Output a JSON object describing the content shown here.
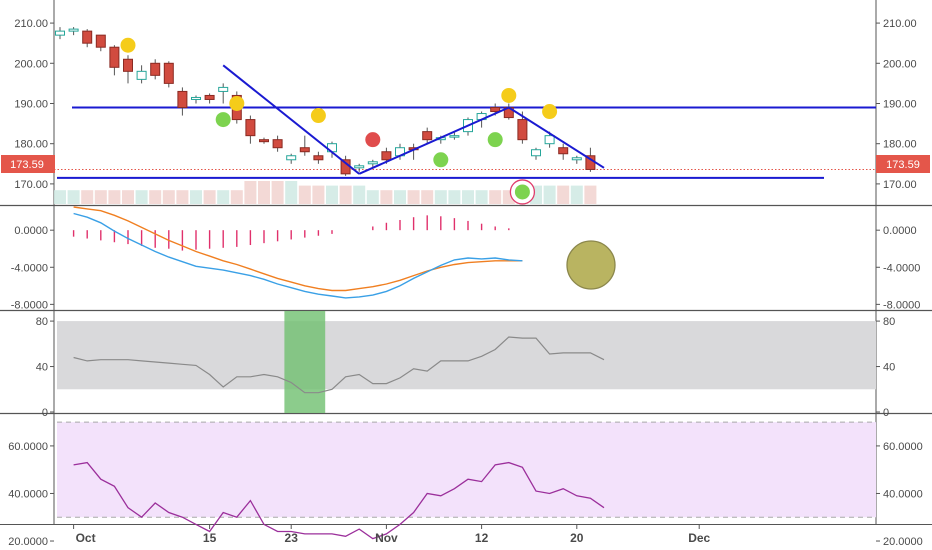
{
  "colors": {
    "up": "#26a69a",
    "down": "#d14b3f",
    "trendline": "#1a1ad1",
    "macd": "#3aa0e6",
    "signal": "#f07f21",
    "histogram": "#e0306b",
    "stoch": "#8a8a8a",
    "stoch_band": "#d9d9db",
    "highlight": "#6fbf6f",
    "rsi": "#9b2f9b",
    "rsi_band": "#f3e2fb",
    "price_label_bg": "#e4564a",
    "yellow_marker": "#f5cc1a",
    "green_marker": "#7dd34f",
    "red_marker": "#e04c4c",
    "olive_marker": "#a8a23a"
  },
  "price_label": "173.59",
  "chart_data": [
    {
      "type": "candlestick",
      "panel": "price",
      "ylim": [
        165,
        214
      ],
      "yticks": [
        "210.00",
        "200.00",
        "190.00",
        "180.00",
        "170.00"
      ],
      "ytick_values": [
        210,
        200,
        190,
        180,
        170
      ],
      "xticks": [
        {
          "label": "Oct",
          "i": 1
        },
        {
          "label": "15",
          "i": 11
        },
        {
          "label": "23",
          "i": 17
        },
        {
          "label": "Nov",
          "i": 24
        },
        {
          "label": "12",
          "i": 31
        },
        {
          "label": "20",
          "i": 38
        },
        {
          "label": "Dec",
          "i": 47
        }
      ],
      "ohlc": [
        [
          207,
          209,
          206,
          208
        ],
        [
          208,
          209,
          207,
          208.5
        ],
        [
          208,
          208.5,
          204,
          205
        ],
        [
          207,
          207,
          203,
          204
        ],
        [
          204,
          204.5,
          197,
          199
        ],
        [
          201,
          202,
          195,
          198
        ],
        [
          196,
          199.5,
          195,
          198
        ],
        [
          200,
          201,
          196,
          197
        ],
        [
          200,
          200.5,
          194,
          195
        ],
        [
          193,
          194,
          187,
          189
        ],
        [
          191,
          192,
          190,
          191.5
        ],
        [
          192,
          192.5,
          190,
          191
        ],
        [
          193,
          195,
          190,
          194
        ],
        [
          192,
          193,
          185,
          186
        ],
        [
          186,
          187,
          180,
          182
        ],
        [
          181,
          181.5,
          180,
          180.5
        ],
        [
          181,
          182,
          178,
          179
        ],
        [
          176,
          177.5,
          175,
          177
        ],
        [
          179,
          182,
          177,
          178
        ],
        [
          177,
          178,
          175,
          176
        ],
        [
          178,
          180.5,
          176.5,
          180
        ],
        [
          176,
          177,
          172,
          172.5
        ],
        [
          174,
          175,
          173,
          174.5
        ],
        [
          175,
          176,
          174,
          175.5
        ],
        [
          178,
          179,
          175,
          176
        ],
        [
          177,
          180,
          176,
          179
        ],
        [
          179,
          180,
          176,
          178.5
        ],
        [
          183,
          184,
          180,
          181
        ],
        [
          181,
          182,
          180,
          181.5
        ],
        [
          182,
          183,
          181,
          182
        ],
        [
          183,
          186.5,
          182,
          186
        ],
        [
          186,
          188,
          184,
          187.5
        ],
        [
          189,
          190,
          187,
          188
        ],
        [
          189,
          190,
          186,
          186.5
        ],
        [
          186,
          188,
          180,
          181
        ],
        [
          177,
          179,
          176,
          178.5
        ],
        [
          180,
          183,
          179,
          182
        ],
        [
          179,
          180,
          176,
          177.5
        ],
        [
          176,
          177,
          175,
          176.5
        ],
        [
          177,
          179,
          173,
          173.59
        ]
      ],
      "volume": [
        3,
        3,
        3,
        3,
        3,
        3,
        3,
        3,
        3,
        3,
        3,
        3,
        3,
        3,
        5,
        5,
        5,
        5,
        4,
        4,
        4,
        4,
        4,
        3,
        3,
        3,
        3,
        3,
        3,
        3,
        3,
        3,
        3,
        3,
        5,
        4,
        4,
        4,
        4,
        4
      ],
      "horizontal_lines": [
        189,
        171.5
      ],
      "trendlines": [
        [
          [
            12,
            199.5
          ],
          [
            22,
            172.5
          ]
        ],
        [
          [
            22,
            172.5
          ],
          [
            33,
            189
          ]
        ],
        [
          [
            33,
            189
          ],
          [
            40,
            174
          ]
        ]
      ]
    },
    {
      "type": "line",
      "panel": "macd",
      "ylim": [
        -8.5,
        2.5
      ],
      "yticks": [
        "0.0000",
        "-4.0000",
        "-8.0000"
      ],
      "ytick_values": [
        0,
        -4,
        -8
      ],
      "series": [
        {
          "values": [
            1.8,
            1.4,
            0.8,
            -0.1,
            -0.9,
            -1.6,
            -2.3,
            -2.9,
            -3.4,
            -3.9,
            -4.1,
            -4.3,
            -4.6,
            -4.9,
            -5.3,
            -5.8,
            -6.2,
            -6.6,
            -6.9,
            -7.1,
            -7.3,
            -7.2,
            -7.0,
            -6.6,
            -6.0,
            -5.2,
            -4.5,
            -3.8,
            -3.2,
            -3.0,
            -3.1,
            -3.0,
            -3.2,
            -3.3
          ],
          "x_start": 1
        },
        {
          "values": [
            2.5,
            2.3,
            2.1,
            1.6,
            1.0,
            0.3,
            -0.4,
            -1.1,
            -1.7,
            -2.3,
            -2.8,
            -3.3,
            -3.7,
            -4.2,
            -4.7,
            -5.2,
            -5.6,
            -6.0,
            -6.3,
            -6.5,
            -6.5,
            -6.3,
            -6.1,
            -5.8,
            -5.4,
            -4.9,
            -4.4,
            -4.0,
            -3.7,
            -3.5,
            -3.4,
            -3.3,
            -3.3,
            -3.3
          ],
          "x_start": 1
        }
      ],
      "histogram": [
        -0.7,
        -0.9,
        -1.1,
        -1.3,
        -1.5,
        -1.7,
        -1.9,
        -2.0,
        -2.2,
        -2.1,
        -2.0,
        -1.9,
        -1.8,
        -1.6,
        -1.4,
        -1.2,
        -1.0,
        -0.8,
        -0.6,
        -0.4,
        null,
        null,
        0.4,
        0.8,
        1.1,
        1.4,
        1.6,
        1.5,
        1.3,
        1.0,
        0.7,
        0.4,
        0.2
      ]
    },
    {
      "type": "line",
      "panel": "stochastic",
      "ylim": [
        0,
        88
      ],
      "yticks": [
        "80",
        "40",
        "0"
      ],
      "ytick_values": [
        80,
        40,
        0
      ],
      "band": [
        20,
        80
      ],
      "highlight_range": [
        16.5,
        19.5
      ],
      "series": [
        {
          "values": [
            48,
            45,
            46,
            46,
            46,
            45,
            44,
            43,
            42,
            41,
            33,
            22,
            31,
            31,
            33,
            31,
            26,
            17,
            17,
            20,
            31,
            33,
            25,
            25,
            30,
            38,
            36,
            45,
            45,
            45,
            49,
            55,
            66,
            65,
            65,
            51,
            52,
            52,
            52,
            46
          ],
          "x_start": 1
        }
      ]
    },
    {
      "type": "line",
      "panel": "rsi",
      "ylim": [
        28,
        73
      ],
      "yticks": [
        "60.0000",
        "40.0000",
        "20.0000"
      ],
      "ytick_values": [
        60,
        40,
        20
      ],
      "band": [
        30,
        70
      ],
      "series": [
        {
          "values": [
            52,
            53,
            46,
            43,
            34,
            30,
            36,
            32,
            30,
            27,
            24,
            32,
            30,
            37,
            27,
            24,
            24,
            23,
            23,
            23,
            22,
            25,
            21,
            23,
            27,
            32,
            40,
            39,
            42,
            46,
            45,
            52,
            53,
            51,
            41,
            40,
            42,
            39,
            38,
            34
          ],
          "x_start": 1
        }
      ]
    }
  ],
  "markers": [
    {
      "i": 5,
      "y": 204.5,
      "kind": "yellow"
    },
    {
      "i": 13,
      "y": 190,
      "kind": "yellow"
    },
    {
      "i": 19,
      "y": 187,
      "kind": "yellow"
    },
    {
      "i": 33,
      "y": 192,
      "kind": "yellow"
    },
    {
      "i": 36,
      "y": 188,
      "kind": "yellow"
    },
    {
      "i": 12,
      "y": 186,
      "kind": "green"
    },
    {
      "i": 28,
      "y": 176,
      "kind": "green"
    },
    {
      "i": 32,
      "y": 181,
      "kind": "green"
    },
    {
      "i": 34,
      "y": 168,
      "kind": "green"
    },
    {
      "i": 23,
      "y": 181,
      "kind": "red"
    }
  ]
}
